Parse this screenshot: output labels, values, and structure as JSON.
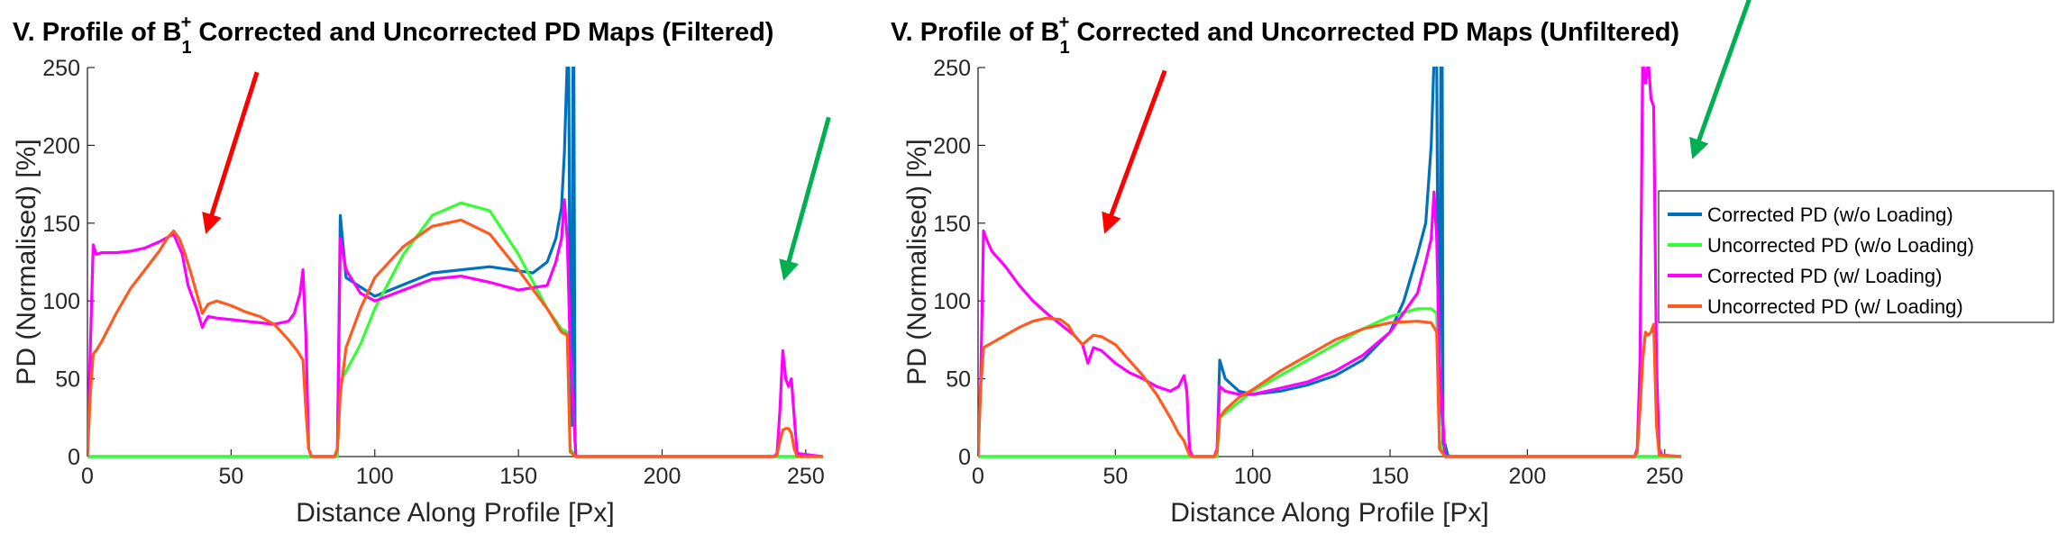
{
  "colors": {
    "corrected_no_loading": "#0072bd",
    "uncorrected_no_loading": "#33ff33",
    "corrected_loading": "#ff00ff",
    "uncorrected_loading": "#ff5a1f",
    "red_arrow": "#ff0000",
    "green_arrow": "#00b050"
  },
  "legend": {
    "location": "right, between panels",
    "entries": [
      "Corrected PD (w/o Loading)",
      "Uncorrected PD (w/o Loading)",
      "Corrected PD (w/ Loading)",
      "Uncorrected PD (w/ Loading)"
    ]
  },
  "chart_data": [
    {
      "type": "line",
      "title_prefix": "V. Profile of B",
      "title_sub": "1",
      "title_sup": "+",
      "title_suffix": " Corrected and Uncorrected PD Maps (Filtered)",
      "xlabel": "Distance Along Profile [Px]",
      "ylabel": "PD (Normalised) [%]",
      "xlim": [
        0,
        256
      ],
      "ylim": [
        0,
        250
      ],
      "xticks": [
        0,
        50,
        100,
        150,
        200,
        250
      ],
      "yticks": [
        0,
        50,
        100,
        150,
        200,
        250
      ],
      "grid": false,
      "annotations": [
        {
          "type": "arrow",
          "color": "red",
          "from": [
            59,
            247
          ],
          "to": [
            42,
            148
          ]
        },
        {
          "type": "arrow",
          "color": "green",
          "from": [
            258,
            218
          ],
          "to": [
            243,
            118
          ]
        }
      ],
      "series": [
        {
          "name": "Corrected PD (w/o Loading)",
          "x": [
            0,
            1,
            2,
            3,
            30,
            35,
            40,
            60,
            75,
            77,
            78,
            86,
            87,
            88,
            90,
            100,
            120,
            140,
            155,
            160,
            163,
            165,
            166,
            167,
            167.5,
            168,
            168.5,
            169,
            169.3,
            169.7,
            170,
            171,
            256
          ],
          "y": [
            0,
            0,
            0,
            0,
            0,
            0,
            0,
            0,
            0,
            0,
            0,
            0,
            1,
            155,
            115,
            103,
            118,
            122,
            118,
            125,
            140,
            160,
            195,
            255,
            255,
            60,
            20,
            255,
            255,
            10,
            0,
            0,
            0
          ]
        },
        {
          "name": "Uncorrected PD (w/o Loading)",
          "x": [
            0,
            50,
            86,
            87,
            88,
            95,
            100,
            110,
            120,
            130,
            140,
            150,
            160,
            165,
            167,
            168,
            170,
            256
          ],
          "y": [
            0,
            0,
            0,
            0,
            48,
            72,
            95,
            130,
            155,
            163,
            158,
            130,
            95,
            82,
            80,
            5,
            0,
            0
          ]
        },
        {
          "name": "Corrected PD (w/ Loading)",
          "x": [
            0,
            1,
            2,
            3,
            5,
            10,
            15,
            20,
            25,
            30,
            33,
            35,
            38,
            40,
            41,
            42,
            45,
            50,
            55,
            60,
            65,
            70,
            72,
            74,
            75,
            76,
            77,
            78,
            86,
            87,
            88,
            90,
            95,
            100,
            110,
            120,
            130,
            140,
            150,
            160,
            163,
            165,
            166,
            167,
            168,
            170,
            239,
            240,
            241,
            242,
            243,
            244,
            245,
            246,
            247,
            256
          ],
          "y": [
            0,
            70,
            136,
            130,
            131,
            131,
            132,
            134,
            138,
            143,
            130,
            110,
            95,
            83,
            87,
            90,
            89,
            88,
            87,
            86,
            85,
            87,
            92,
            105,
            120,
            78,
            5,
            0,
            0,
            5,
            140,
            120,
            105,
            100,
            107,
            114,
            116,
            112,
            107,
            110,
            125,
            140,
            165,
            140,
            70,
            0,
            0,
            2,
            30,
            68,
            50,
            45,
            50,
            25,
            2,
            0
          ]
        },
        {
          "name": "Uncorrected PD (w/ Loading)",
          "x": [
            0,
            1,
            2,
            3,
            5,
            10,
            15,
            20,
            25,
            28,
            30,
            32,
            34,
            36,
            38,
            40,
            42,
            45,
            50,
            55,
            60,
            65,
            70,
            73,
            75,
            76,
            77,
            78,
            86,
            87,
            88,
            90,
            95,
            100,
            110,
            120,
            130,
            140,
            150,
            160,
            165,
            167,
            168,
            170,
            239,
            240,
            241,
            242,
            243,
            244,
            245,
            246,
            247,
            256
          ],
          "y": [
            0,
            40,
            66,
            68,
            74,
            92,
            108,
            120,
            132,
            141,
            145,
            140,
            130,
            118,
            105,
            92,
            98,
            100,
            97,
            93,
            90,
            85,
            75,
            68,
            62,
            30,
            5,
            0,
            0,
            5,
            40,
            70,
            95,
            115,
            135,
            148,
            152,
            143,
            120,
            95,
            80,
            78,
            3,
            0,
            0,
            1,
            10,
            17,
            18,
            18,
            15,
            5,
            0,
            0
          ]
        }
      ]
    },
    {
      "type": "line",
      "title_prefix": "V. Profile of B",
      "title_sub": "1",
      "title_sup": "+",
      "title_suffix": " Corrected and Uncorrected PD Maps (Unfiltered)",
      "xlabel": "Distance Along Profile [Px]",
      "ylabel": "PD (Normalised) [%]",
      "xlim": [
        0,
        256
      ],
      "ylim": [
        0,
        250
      ],
      "xticks": [
        0,
        50,
        100,
        150,
        200,
        250
      ],
      "yticks": [
        0,
        50,
        100,
        150,
        200,
        250
      ],
      "grid": false,
      "annotations": [
        {
          "type": "arrow",
          "color": "red",
          "from": [
            68,
            248
          ],
          "to": [
            47,
            148
          ]
        },
        {
          "type": "arrow",
          "color": "green",
          "from": [
            281,
            295
          ],
          "to": [
            261,
            196
          ]
        }
      ],
      "series": [
        {
          "name": "Corrected PD (w/o Loading)",
          "x": [
            0,
            50,
            86,
            87,
            88,
            90,
            95,
            100,
            110,
            120,
            130,
            140,
            150,
            155,
            160,
            163,
            165,
            166,
            167,
            167.5,
            168,
            168.5,
            169,
            169.3,
            169.7,
            170,
            171,
            172,
            256
          ],
          "y": [
            0,
            0,
            0,
            0,
            62,
            50,
            42,
            40,
            42,
            46,
            52,
            62,
            80,
            100,
            130,
            150,
            200,
            255,
            255,
            80,
            20,
            255,
            255,
            10,
            2,
            8,
            1,
            0,
            0
          ]
        },
        {
          "name": "Uncorrected PD (w/o Loading)",
          "x": [
            0,
            50,
            86,
            87,
            88,
            95,
            100,
            110,
            120,
            130,
            140,
            150,
            160,
            165,
            167,
            168,
            170,
            256
          ],
          "y": [
            0,
            0,
            0,
            0,
            25,
            35,
            42,
            52,
            62,
            72,
            82,
            90,
            95,
            95,
            92,
            10,
            0,
            0
          ]
        },
        {
          "name": "Corrected PD (w/ Loading)",
          "x": [
            0,
            1,
            2,
            3,
            5,
            10,
            15,
            20,
            25,
            30,
            35,
            38,
            40,
            42,
            45,
            50,
            55,
            60,
            65,
            70,
            73,
            75,
            76,
            77,
            78,
            86,
            87,
            88,
            90,
            95,
            100,
            110,
            120,
            130,
            140,
            150,
            160,
            163,
            165,
            166,
            167,
            168,
            170,
            239,
            240,
            241,
            242,
            243,
            244,
            245,
            246,
            247,
            248,
            249,
            256
          ],
          "y": [
            0,
            50,
            145,
            140,
            132,
            122,
            110,
            100,
            92,
            85,
            78,
            72,
            60,
            70,
            68,
            60,
            54,
            50,
            45,
            42,
            45,
            52,
            42,
            5,
            0,
            0,
            5,
            45,
            42,
            40,
            40,
            44,
            48,
            55,
            65,
            80,
            105,
            125,
            140,
            170,
            140,
            60,
            0,
            0,
            5,
            60,
            255,
            240,
            255,
            230,
            225,
            60,
            5,
            1,
            0
          ]
        },
        {
          "name": "Uncorrected PD (w/ Loading)",
          "x": [
            0,
            1,
            2,
            3,
            5,
            10,
            15,
            20,
            25,
            30,
            33,
            35,
            38,
            40,
            42,
            45,
            50,
            55,
            60,
            65,
            70,
            73,
            75,
            76,
            77,
            78,
            86,
            87,
            88,
            90,
            95,
            100,
            110,
            120,
            130,
            140,
            150,
            160,
            165,
            167,
            168,
            170,
            239,
            240,
            241,
            242,
            243,
            244,
            245,
            246,
            247,
            248,
            256
          ],
          "y": [
            0,
            45,
            70,
            71,
            73,
            78,
            83,
            87,
            89,
            88,
            84,
            78,
            72,
            75,
            78,
            77,
            72,
            62,
            52,
            40,
            25,
            15,
            10,
            5,
            1,
            0,
            0,
            3,
            25,
            30,
            38,
            43,
            55,
            65,
            75,
            82,
            86,
            87,
            86,
            80,
            5,
            0,
            0,
            3,
            30,
            62,
            80,
            78,
            80,
            85,
            20,
            1,
            0
          ]
        }
      ]
    }
  ]
}
